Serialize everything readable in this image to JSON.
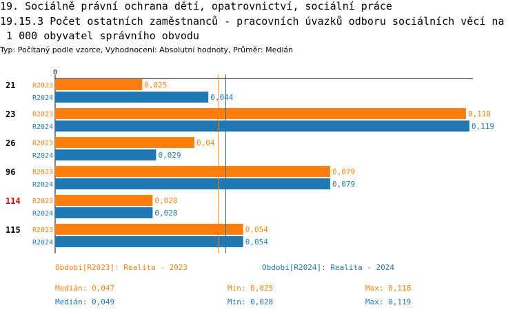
{
  "title": {
    "line1": "19. Sociálně právní ochrana dětí, opatrovnictví, sociální práce",
    "line2": "19.15.3 Počet ostatních zaměstnanců - pracovních úvazků odboru sociálních věcí na",
    "line3": " 1 000 obyvatel správního obvodu"
  },
  "subtitle": "Typ: Počítaný podle vzorce, Vyhodnocení: Absolutní hodnoty, Průměr: Medián",
  "colors": {
    "r2023": "#ff7f0e",
    "r2024": "#1f77b4",
    "highlight": "#e00000",
    "text": "#000000"
  },
  "chart_data": {
    "type": "bar",
    "orientation": "horizontal",
    "axis_zero_label": "0",
    "xlim": [
      0,
      0.119
    ],
    "categories": [
      "21",
      "23",
      "26",
      "96",
      "114",
      "115"
    ],
    "highlighted_category": "114",
    "series": [
      {
        "name": "R2023",
        "values": [
          0.025,
          0.118,
          0.04,
          0.079,
          0.028,
          0.054
        ],
        "labels": [
          "0,025",
          "0,118",
          "0,04",
          "0,079",
          "0,028",
          "0,054"
        ]
      },
      {
        "name": "R2024",
        "values": [
          0.044,
          0.119,
          0.029,
          0.079,
          0.028,
          0.054
        ],
        "labels": [
          "0,044",
          "0,119",
          "0,029",
          "0,079",
          "0,028",
          "0,054"
        ]
      }
    ],
    "median_lines": [
      {
        "series": "R2023",
        "value": 0.047
      },
      {
        "series": "R2024",
        "value": 0.049
      }
    ]
  },
  "legend": {
    "r2023": {
      "period": "Období[R2023]: Realita - 2023",
      "median": "Medián: 0,047",
      "min": "Min: 0,025",
      "max": "Max: 0,118"
    },
    "r2024": {
      "period": "Období[R2024]: Realita - 2024",
      "median": "Medián: 0,049",
      "min": "Min: 0,028",
      "max": "Max: 0,119"
    }
  }
}
